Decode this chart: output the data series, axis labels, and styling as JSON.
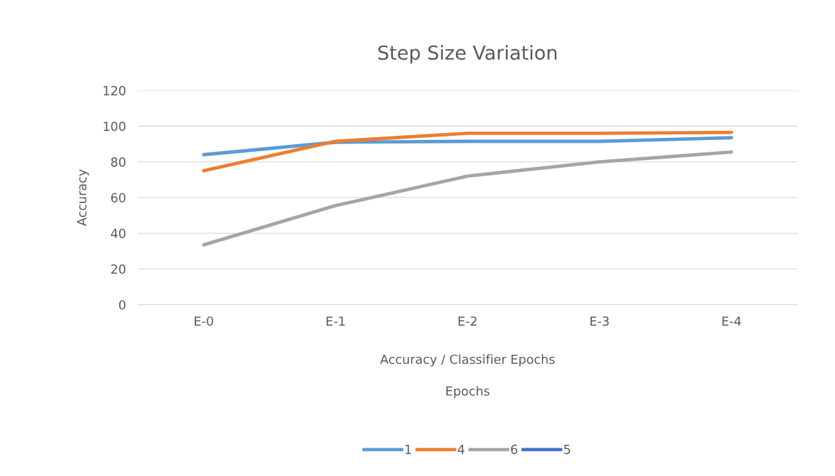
{
  "chart_data": {
    "type": "line",
    "title": "Step Size Variation",
    "xlabel": "Epochs",
    "ylabel": "Accuracy",
    "annotations": [
      "Accuracy / Classifier Epochs"
    ],
    "categories": [
      "E-0",
      "E-1",
      "E-2",
      "E-3",
      "E-4"
    ],
    "series": [
      {
        "name": "1",
        "color": "#5b9bd5",
        "values": [
          84,
          91,
          91.5,
          91.5,
          93.5
        ]
      },
      {
        "name": "4",
        "color": "#ed7d31",
        "values": [
          75,
          91.5,
          96,
          96,
          96.5
        ]
      },
      {
        "name": "6",
        "color": "#a5a5a5",
        "values": [
          33.5,
          55.5,
          72,
          80,
          85.5
        ]
      },
      {
        "name": "5",
        "color": "#4472c4",
        "values": [
          null,
          null,
          null,
          null,
          null
        ]
      }
    ],
    "ylim": [
      0,
      120
    ],
    "yticks": [
      0,
      20,
      40,
      60,
      80,
      100,
      120
    ],
    "grid": "y",
    "legend": "bottom",
    "marker": "none",
    "line_style": "solid"
  }
}
